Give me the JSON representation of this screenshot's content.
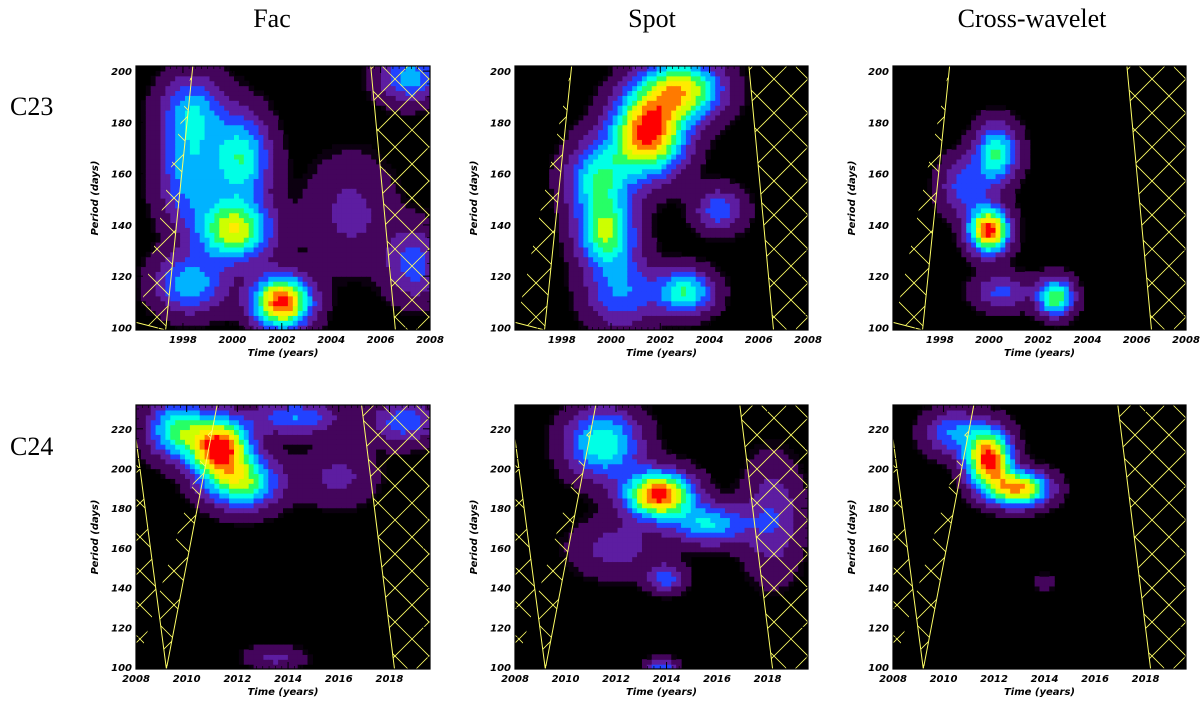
{
  "column_titles": [
    "Fac",
    "Spot",
    "Cross-wavelet"
  ],
  "row_titles": [
    "C23",
    "C24"
  ],
  "colors": {
    "background": "#000000",
    "coi_hatch": "#ffff66",
    "scale": [
      "#000000",
      "#3a0050",
      "#6a1a8a",
      "#2a2aff",
      "#00a0ff",
      "#00ffff",
      "#00ff80",
      "#c0ff00",
      "#ffff00",
      "#ff9900",
      "#ff0000"
    ]
  },
  "chart_data": [
    {
      "type": "heatmap",
      "panel": "Fac C23",
      "xlabel": "Time (years)",
      "ylabel": "Period (days)",
      "xlim": [
        1996.1,
        2008
      ],
      "ylim": [
        99,
        202
      ],
      "xticks": [
        1998,
        2000,
        2002,
        2004,
        2006,
        2008
      ],
      "yticks": [
        100,
        120,
        140,
        160,
        180,
        200
      ],
      "coi_left": [
        [
          1996.1,
          102
        ],
        [
          1997.3,
          99
        ],
        [
          1998.4,
          202
        ]
      ],
      "coi_right": [
        [
          2005.6,
          202
        ],
        [
          2006.6,
          99
        ]
      ],
      "peaks": [
        {
          "x": 2002.0,
          "y": 110,
          "v": 1.0,
          "sx": 0.8,
          "sy": 7
        },
        {
          "x": 2000.1,
          "y": 138,
          "v": 0.72,
          "sx": 1.0,
          "sy": 8
        },
        {
          "x": 2000.4,
          "y": 166,
          "v": 0.52,
          "sx": 0.8,
          "sy": 12
        },
        {
          "x": 1998.3,
          "y": 160,
          "v": 0.4,
          "sx": 0.9,
          "sy": 14
        },
        {
          "x": 1998.4,
          "y": 185,
          "v": 0.38,
          "sx": 0.9,
          "sy": 10
        },
        {
          "x": 1998.3,
          "y": 117,
          "v": 0.42,
          "sx": 1.0,
          "sy": 8
        },
        {
          "x": 2007.2,
          "y": 198,
          "v": 0.4,
          "sx": 0.9,
          "sy": 7
        },
        {
          "x": 2007.4,
          "y": 125,
          "v": 0.3,
          "sx": 0.8,
          "sy": 10
        },
        {
          "x": 2004.8,
          "y": 145,
          "v": 0.18,
          "sx": 1.2,
          "sy": 15
        }
      ]
    },
    {
      "type": "heatmap",
      "panel": "Spot C23",
      "xlabel": "Time (years)",
      "ylabel": "Period (days)",
      "xlim": [
        1996.1,
        2008
      ],
      "ylim": [
        99,
        202
      ],
      "xticks": [
        1998,
        2000,
        2002,
        2004,
        2006,
        2008
      ],
      "yticks": [
        100,
        120,
        140,
        160,
        180,
        200
      ],
      "coi_left": [
        [
          1996.1,
          102
        ],
        [
          1997.3,
          99
        ],
        [
          1998.4,
          202
        ]
      ],
      "coi_right": [
        [
          2005.6,
          202
        ],
        [
          2006.6,
          99
        ]
      ],
      "peaks": [
        {
          "x": 2001.5,
          "y": 176,
          "v": 1.0,
          "sx": 1.0,
          "sy": 11
        },
        {
          "x": 2002.9,
          "y": 193,
          "v": 0.75,
          "sx": 1.1,
          "sy": 8
        },
        {
          "x": 1999.8,
          "y": 137,
          "v": 0.62,
          "sx": 0.8,
          "sy": 9
        },
        {
          "x": 2003.0,
          "y": 114,
          "v": 0.55,
          "sx": 0.8,
          "sy": 6
        },
        {
          "x": 1999.5,
          "y": 158,
          "v": 0.5,
          "sx": 0.9,
          "sy": 10
        },
        {
          "x": 2000.4,
          "y": 114,
          "v": 0.35,
          "sx": 1.0,
          "sy": 10
        },
        {
          "x": 2004.4,
          "y": 146,
          "v": 0.32,
          "sx": 0.7,
          "sy": 6
        }
      ]
    },
    {
      "type": "heatmap",
      "panel": "Cross-wavelet C23",
      "xlabel": "Time (years)",
      "ylabel": "Period (days)",
      "xlim": [
        1996.1,
        2008
      ],
      "ylim": [
        99,
        202
      ],
      "xticks": [
        1998,
        2000,
        2002,
        2004,
        2006,
        2008
      ],
      "yticks": [
        100,
        120,
        140,
        160,
        180,
        200
      ],
      "coi_left": [
        [
          1996.1,
          102
        ],
        [
          1997.3,
          99
        ],
        [
          1998.4,
          202
        ]
      ],
      "coi_right": [
        [
          2005.6,
          202
        ],
        [
          2006.6,
          99
        ]
      ],
      "peaks": [
        {
          "x": 2000.0,
          "y": 138,
          "v": 1.0,
          "sx": 0.55,
          "sy": 6
        },
        {
          "x": 2000.3,
          "y": 168,
          "v": 0.55,
          "sx": 0.6,
          "sy": 8
        },
        {
          "x": 2002.7,
          "y": 112,
          "v": 0.65,
          "sx": 0.5,
          "sy": 5
        },
        {
          "x": 1999.0,
          "y": 155,
          "v": 0.3,
          "sx": 0.7,
          "sy": 8
        },
        {
          "x": 2000.5,
          "y": 114,
          "v": 0.28,
          "sx": 0.8,
          "sy": 5
        }
      ]
    },
    {
      "type": "heatmap",
      "panel": "Fac C24",
      "xlabel": "Time (years)",
      "ylabel": "Period (days)",
      "xlim": [
        2008,
        2019.6
      ],
      "ylim": [
        99,
        232
      ],
      "xticks": [
        2008,
        2010,
        2012,
        2014,
        2016,
        2018
      ],
      "yticks": [
        100,
        120,
        140,
        160,
        180,
        200,
        220
      ],
      "coi_left": [
        [
          2008,
          215
        ],
        [
          2009.2,
          99
        ],
        [
          2011.2,
          232
        ]
      ],
      "coi_right": [
        [
          2016.9,
          232
        ],
        [
          2018.2,
          99
        ]
      ],
      "peaks": [
        {
          "x": 2011.3,
          "y": 211,
          "v": 1.0,
          "sx": 0.8,
          "sy": 10
        },
        {
          "x": 2012.2,
          "y": 193,
          "v": 0.62,
          "sx": 1.0,
          "sy": 9
        },
        {
          "x": 2009.6,
          "y": 220,
          "v": 0.55,
          "sx": 0.8,
          "sy": 10
        },
        {
          "x": 2014.3,
          "y": 226,
          "v": 0.35,
          "sx": 1.2,
          "sy": 6
        },
        {
          "x": 2018.6,
          "y": 224,
          "v": 0.32,
          "sx": 0.9,
          "sy": 8
        },
        {
          "x": 2016.0,
          "y": 196,
          "v": 0.18,
          "sx": 1.0,
          "sy": 10
        },
        {
          "x": 2013.5,
          "y": 105,
          "v": 0.18,
          "sx": 0.8,
          "sy": 4
        }
      ]
    },
    {
      "type": "heatmap",
      "panel": "Spot C24",
      "xlabel": "Time (years)",
      "ylabel": "Period (days)",
      "xlim": [
        2008,
        2019.6
      ],
      "ylim": [
        99,
        232
      ],
      "xticks": [
        2008,
        2010,
        2012,
        2014,
        2016,
        2018
      ],
      "yticks": [
        100,
        120,
        140,
        160,
        180,
        200,
        220
      ],
      "coi_left": [
        [
          2008,
          215
        ],
        [
          2009.2,
          99
        ],
        [
          2011.2,
          232
        ]
      ],
      "coi_right": [
        [
          2016.9,
          232
        ],
        [
          2018.2,
          99
        ]
      ],
      "peaks": [
        {
          "x": 2013.7,
          "y": 187,
          "v": 1.0,
          "sx": 0.9,
          "sy": 8
        },
        {
          "x": 2011.5,
          "y": 213,
          "v": 0.55,
          "sx": 1.0,
          "sy": 12
        },
        {
          "x": 2015.7,
          "y": 172,
          "v": 0.45,
          "sx": 1.0,
          "sy": 7
        },
        {
          "x": 2014.0,
          "y": 145,
          "v": 0.3,
          "sx": 0.5,
          "sy": 5
        },
        {
          "x": 2013.8,
          "y": 100,
          "v": 0.35,
          "sx": 0.4,
          "sy": 3
        },
        {
          "x": 2018.2,
          "y": 175,
          "v": 0.25,
          "sx": 0.8,
          "sy": 20
        },
        {
          "x": 2012.0,
          "y": 160,
          "v": 0.2,
          "sx": 1.2,
          "sy": 10
        }
      ]
    },
    {
      "type": "heatmap",
      "panel": "Cross-wavelet C24",
      "xlabel": "Time (years)",
      "ylabel": "Period (days)",
      "xlim": [
        2008,
        2019.6
      ],
      "ylim": [
        99,
        232
      ],
      "xticks": [
        2008,
        2010,
        2012,
        2014,
        2016,
        2018
      ],
      "yticks": [
        100,
        120,
        140,
        160,
        180,
        200,
        220
      ],
      "coi_left": [
        [
          2008,
          215
        ],
        [
          2009.2,
          99
        ],
        [
          2011.2,
          232
        ]
      ],
      "coi_right": [
        [
          2016.9,
          232
        ],
        [
          2018.2,
          99
        ]
      ],
      "peaks": [
        {
          "x": 2011.8,
          "y": 205,
          "v": 1.0,
          "sx": 0.6,
          "sy": 10
        },
        {
          "x": 2013.0,
          "y": 190,
          "v": 0.85,
          "sx": 0.8,
          "sy": 6
        },
        {
          "x": 2010.4,
          "y": 218,
          "v": 0.35,
          "sx": 0.8,
          "sy": 8
        },
        {
          "x": 2014.0,
          "y": 143,
          "v": 0.12,
          "sx": 0.3,
          "sy": 3
        }
      ]
    }
  ]
}
